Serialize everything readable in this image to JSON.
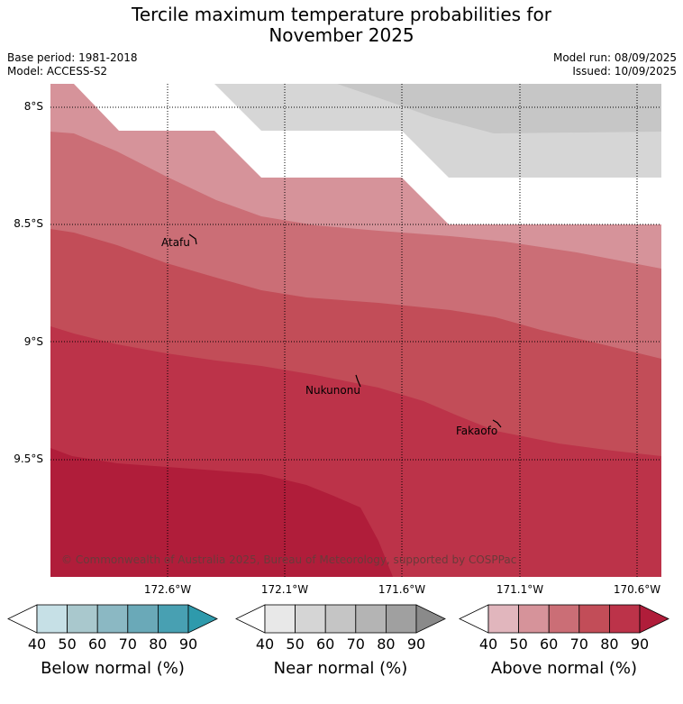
{
  "title_line1": "Tercile maximum temperature probabilities for",
  "title_line2": "November 2025",
  "base_period": "Base period: 1981-2018",
  "model": "Model: ACCESS-S2",
  "model_run": "Model run: 08/09/2025",
  "issued": "Issued: 10/09/2025",
  "lat_labels": [
    "8°S",
    "8.5°S",
    "9°S",
    "9.5°S"
  ],
  "lon_labels": [
    "172.6°W",
    "172.1°W",
    "171.6°W",
    "171.1°W",
    "170.6°W"
  ],
  "places": [
    {
      "name": "Atafu"
    },
    {
      "name": "Nukunonu"
    },
    {
      "name": "Fakaofo"
    }
  ],
  "copyright": "© Commonwealth of Australia 2025, Bureau of Meteorology, supported by COSPPac",
  "colorbars": [
    {
      "title": "Below normal (%)",
      "ticks": [
        "40",
        "50",
        "60",
        "70",
        "80",
        "90"
      ],
      "colors": [
        "#c6e0e6",
        "#a9c8cd",
        "#8bb8c3",
        "#6aa9b8",
        "#48a0b2",
        "#2e9aac"
      ]
    },
    {
      "title": "Near normal (%)",
      "ticks": [
        "40",
        "50",
        "60",
        "70",
        "80",
        "90"
      ],
      "colors": [
        "#e8e8e8",
        "#d5d5d5",
        "#c5c5c5",
        "#b4b4b4",
        "#a0a0a0",
        "#8a8a8a"
      ]
    },
    {
      "title": "Above normal (%)",
      "ticks": [
        "40",
        "50",
        "60",
        "70",
        "80",
        "90"
      ],
      "colors": [
        "#e1b6bd",
        "#d6939a",
        "#cb6e76",
        "#c24d58",
        "#bc3349",
        "#b01d3a"
      ]
    }
  ]
}
